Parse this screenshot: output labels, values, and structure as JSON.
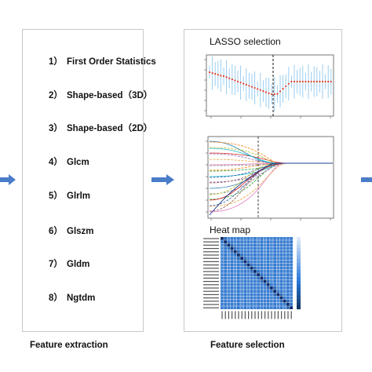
{
  "feature_extraction": {
    "items": [
      {
        "num": "1）",
        "label": "First Order Statistics"
      },
      {
        "num": "2）",
        "label": "Shape-based（3D）"
      },
      {
        "num": "3）",
        "label": "Shape-based（2D）"
      },
      {
        "num": "4）",
        "label": "Glcm"
      },
      {
        "num": "5）",
        "label": "Glrlm"
      },
      {
        "num": "6）",
        "label": "Glszm"
      },
      {
        "num": "7）",
        "label": "Gldm"
      },
      {
        "num": "8）",
        "label": "Ngtdm"
      }
    ],
    "caption": "Feature extraction"
  },
  "feature_selection": {
    "lasso_title": "LASSO selection",
    "heatmap_title": "Heat map",
    "caption": "Feature selection"
  },
  "colors": {
    "arrow": "#4a7cc9",
    "cv_points": "#e23b2a",
    "cv_errorbar": "#8fc9ef",
    "heatmap_base": "#4f8fd8"
  }
}
